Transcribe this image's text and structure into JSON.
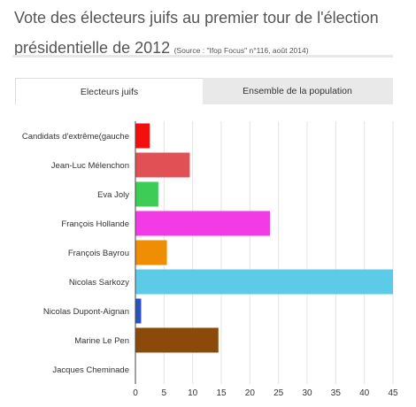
{
  "header": {
    "title_line1": "Vote des électeurs juifs au premier tour de l'élection",
    "title_line2": "présidentielle de 2012",
    "source": "(Source : \"Ifop Focus\" n°116, août 2014)"
  },
  "tabs": [
    {
      "label": "Electeurs juifs",
      "active": true
    },
    {
      "label": "Ensemble de la population",
      "active": false
    }
  ],
  "chart_data": {
    "type": "bar",
    "orientation": "horizontal",
    "categories": [
      "Candidats d'extrême(gauche",
      "Jean-Luc Mélenchon",
      "Eva Joly",
      "François Hollande",
      "François Bayrou",
      "Nicolas Sarkozy",
      "Nicolas Dupont-Aignan",
      "Marine Le Pen",
      "Jacques Cheminade"
    ],
    "values": [
      2.5,
      9.5,
      4,
      23.5,
      5.5,
      45,
      1,
      14.5,
      0
    ],
    "colors": [
      "#f40e0e",
      "#e05055",
      "#3dcc55",
      "#f23ae6",
      "#ef8d04",
      "#5ccbe8",
      "#2a52be",
      "#8b4a0a",
      "#333333"
    ],
    "xlim": [
      0,
      45
    ],
    "xticks": [
      0,
      5,
      10,
      15,
      20,
      25,
      30,
      35,
      40,
      45
    ],
    "grid": true
  }
}
